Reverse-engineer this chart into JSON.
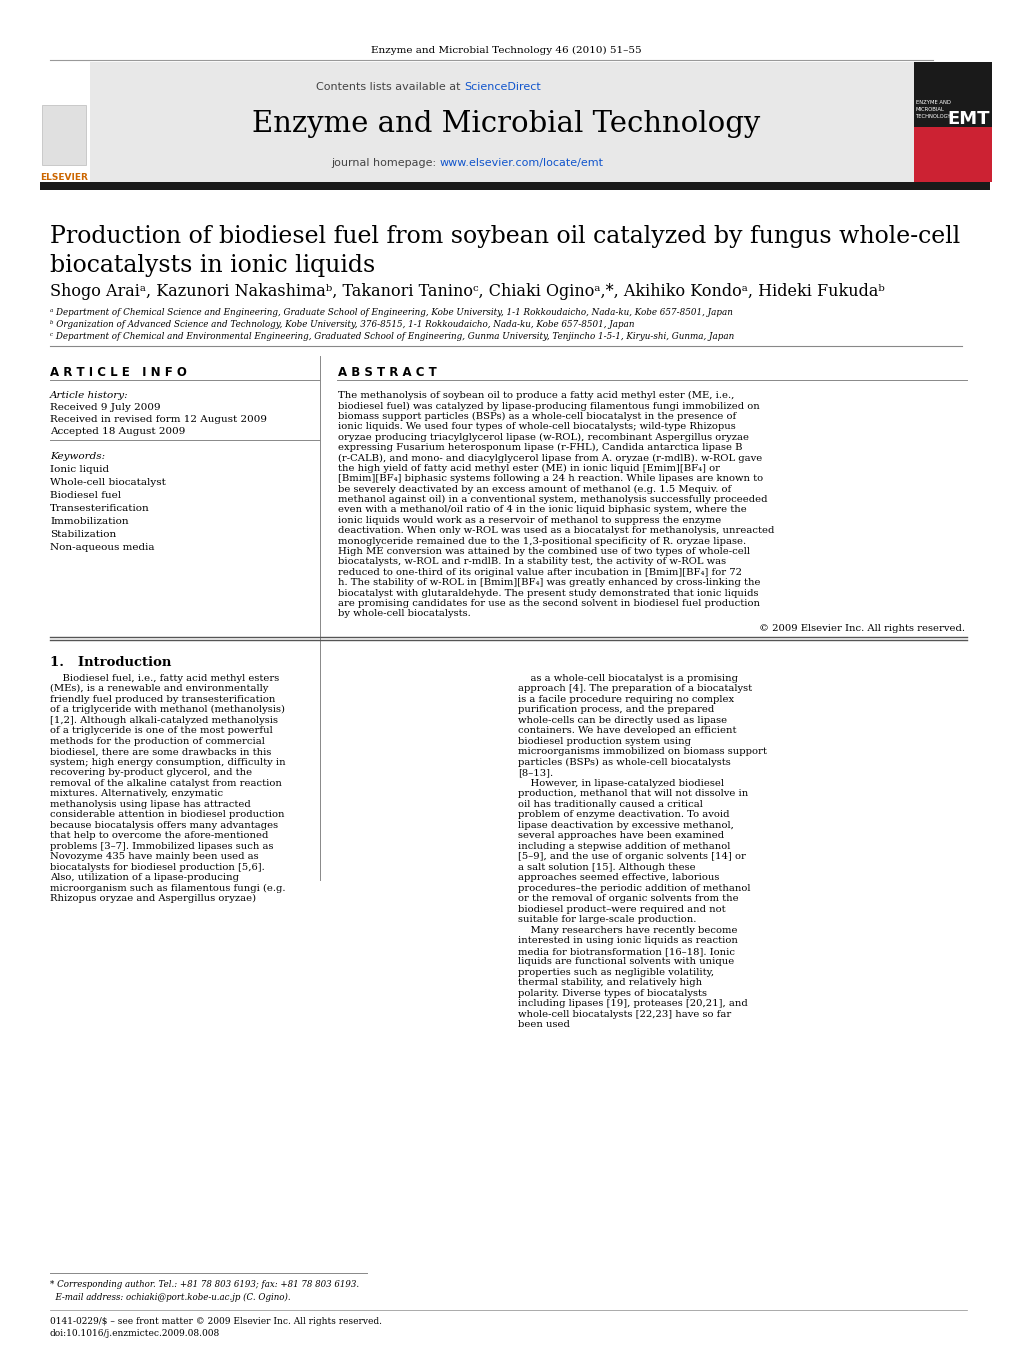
{
  "journal_ref": "Enzyme and Microbial Technology 46 (2010) 51–55",
  "journal_title": "Enzyme and Microbial Technology",
  "paper_title": "Production of biodiesel fuel from soybean oil catalyzed by fungus whole-cell\nbiocatalysts in ionic liquids",
  "authors": "Shogo Araiᵃ, Kazunori Nakashimaᵇ, Takanori Taninoᶜ, Chiaki Oginoᵃ,*, Akihiko Kondoᵃ, Hideki Fukudaᵇ",
  "affil_a": "ᵃ Department of Chemical Science and Engineering, Graduate School of Engineering, Kobe University, 1-1 Rokkoudaicho, Nada-ku, Kobe 657-8501, Japan",
  "affil_b": "ᵇ Organization of Advanced Science and Technology, Kobe University, 376-8515, 1-1 Rokkoudaicho, Nada-ku, Kobe 657-8501, Japan",
  "affil_c": "ᶜ Department of Chemical and Environmental Engineering, Graduated School of Engineering, Gunma University, Tenjincho 1-5-1, Kiryu-shi, Gunma, Japan",
  "article_history_header": "Article history:",
  "received": "Received 9 July 2009",
  "revised": "Received in revised form 12 August 2009",
  "accepted": "Accepted 18 August 2009",
  "keywords_header": "Keywords:",
  "keywords": [
    "Ionic liquid",
    "Whole-cell biocatalyst",
    "Biodiesel fuel",
    "Transesterification",
    "Immobilization",
    "Stabilization",
    "Non-aqueous media"
  ],
  "abstract_text": "The methanolysis of soybean oil to produce a fatty acid methyl ester (ME, i.e., biodiesel fuel) was catalyzed by lipase-producing filamentous fungi immobilized on biomass support particles (BSPs) as a whole-cell biocatalyst in the presence of ionic liquids. We used four types of whole-cell biocatalysts; wild-type Rhizopus oryzae producing triacylglycerol lipase (w-ROL), recombinant Aspergillus oryzae expressing Fusarium heterosponum lipase (r-FHL), Candida antarctica lipase B (r-CALB), and mono- and diacylglycerol lipase from A. oryzae (r-mdlB). w-ROL gave the high yield of fatty acid methyl ester (ME) in ionic liquid [Emim][BF₄] or [Bmim][BF₄] biphasic systems following a 24 h reaction. While lipases are known to be severely deactivated by an excess amount of methanol (e.g. 1.5 Mequiv. of methanol against oil) in a conventional system, methanolysis successfully proceeded even with a methanol/oil ratio of 4 in the ionic liquid biphasic system, where the ionic liquids would work as a reservoir of methanol to suppress the enzyme deactivation. When only w-ROL was used as a biocatalyst for methanolysis, unreacted monoglyceride remained due to the 1,3-positional specificity of R. oryzae lipase. High ME conversion was attained by the combined use of two types of whole-cell biocatalysts, w-ROL and r-mdlB. In a stability test, the activity of w-ROL was reduced to one-third of its original value after incubation in [Bmim][BF₄] for 72 h. The stability of w-ROL in [Bmim][BF₄] was greatly enhanced by cross-linking the biocatalyst with glutaraldehyde. The present study demonstrated that ionic liquids are promising candidates for use as the second solvent in biodiesel fuel production by whole-cell biocatalysts.",
  "copyright_line": "© 2009 Elsevier Inc. All rights reserved.",
  "intro_header": "1.   Introduction",
  "intro_col1": "Biodiesel fuel, i.e., fatty acid methyl esters (MEs), is a renewable and environmentally friendly fuel produced by transesterification of a triglyceride with methanol (methanolysis) [1,2]. Although alkali-catalyzed methanolysis of a triglyceride is one of the most powerful methods for the production of commercial biodiesel, there are some drawbacks in this system; high energy consumption, difficulty in recovering by-product glycerol, and the removal of the alkaline catalyst from reaction mixtures. Alternatively, enzymatic methanolysis using lipase has attracted considerable attention in biodiesel production because biocatalysis offers many advantages that help to overcome the afore-mentioned problems [3–7]. Immobilized lipases such as Novozyme 435 have mainly been used as biocatalysts for biodiesel production [5,6]. Also, utilization of a lipase-producing microorganism such as filamentous fungi (e.g. Rhizopus oryzae and Aspergillus oryzae)",
  "intro_col2": "as a whole-cell biocatalyst is a promising approach [4]. The preparation of a biocatalyst is a facile procedure requiring no complex purification process, and the prepared whole-cells can be directly used as lipase containers. We have developed an efficient biodiesel production system using microorganisms immobilized on biomass support particles (BSPs) as whole-cell biocatalysts [8–13].\n    However, in lipase-catalyzed biodiesel production, methanol that will not dissolve in oil has traditionally caused a critical problem of enzyme deactivation. To avoid lipase deactivation by excessive methanol, several approaches have been examined including a stepwise addition of methanol [5–9], and the use of organic solvents [14] or a salt solution [15]. Although these approaches seemed effective, laborious procedures–the periodic addition of methanol or the removal of organic solvents from the biodiesel product–were required and not suitable for large-scale production.\n    Many researchers have recently become interested in using ionic liquids as reaction media for biotransformation [16–18]. Ionic liquids are functional solvents with unique properties such as negligible volatility, thermal stability, and relatively high polarity. Diverse types of biocatalysts including lipases [19], proteases [20,21], and whole-cell biocatalysts [22,23] have so far been used",
  "footer_text": "0141-0229/$ – see front matter © 2009 Elsevier Inc. All rights reserved.\ndoi:10.1016/j.enzmictec.2009.08.008",
  "corresponding_note": "* Corresponding author. Tel.: +81 78 803 6193; fax: +81 78 803 6193.\n  E-mail address: ochiaki@port.kobe-u.ac.jp (C. Ogino).",
  "bg_header": "#e8e8e8",
  "bg_white": "#ffffff",
  "color_blue_link": "#1a0dab",
  "color_sd_blue": "#1155cc",
  "color_orange": "#cc6600",
  "color_black": "#000000",
  "top_bar_color": "#1a1a1a",
  "emt_red": "#cc2233",
  "emt_dark": "#1a1a1a"
}
